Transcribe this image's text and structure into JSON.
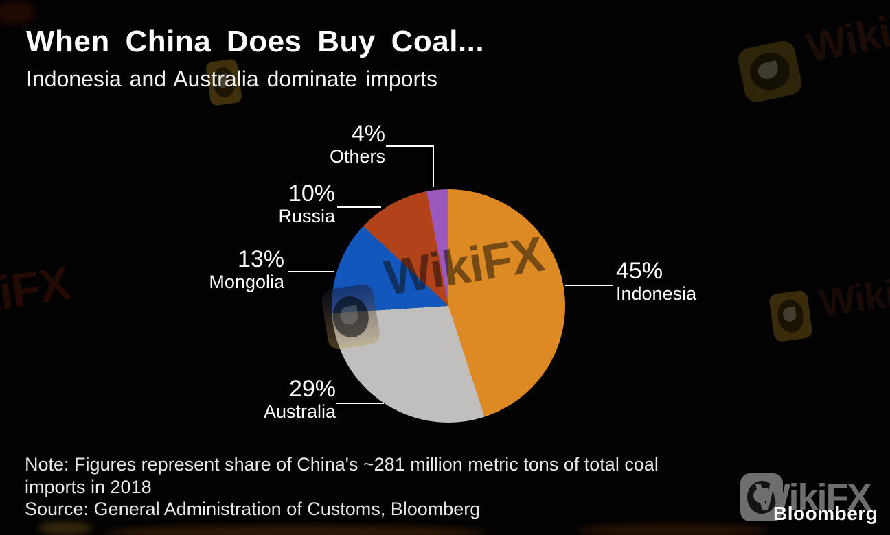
{
  "header": {
    "title": "When China Does Buy Coal...",
    "subtitle": "Indonesia and Australia dominate imports"
  },
  "chart_data": {
    "type": "pie",
    "title": "When China Does Buy Coal...",
    "subtitle": "Indonesia and Australia dominate imports",
    "unit": "percent of total coal imports",
    "direction": "clockwise",
    "start_angle_deg": 0,
    "legend_position": "outside-labels-with-leader-lines",
    "segments": [
      {
        "label": "Indonesia",
        "value": 45,
        "display": "45%",
        "color": "#DE8A24"
      },
      {
        "label": "Australia",
        "value": 29,
        "display": "29%",
        "color": "#C0BFBE"
      },
      {
        "label": "Mongolia",
        "value": 13,
        "display": "13%",
        "color": "#1356BC"
      },
      {
        "label": "Russia",
        "value": 10,
        "display": "10%",
        "color": "#B1421A"
      },
      {
        "label": "Others",
        "value": 4,
        "display": "4%",
        "color": "#9B59BE"
      }
    ]
  },
  "footer": {
    "note": "Note: Figures represent share of China's ~281 million metric tons of total coal imports in 2018",
    "source": "Source: General Administration of Customs, Bloomberg",
    "brand": "Bloomberg"
  },
  "watermark": {
    "text": "WikiFX"
  },
  "colors": {
    "background": "#020202",
    "text": "#ffffff",
    "note_text": "#e8e8e6",
    "leader_line": "#ffffff",
    "watermark_gray": "#6e6e6e"
  }
}
